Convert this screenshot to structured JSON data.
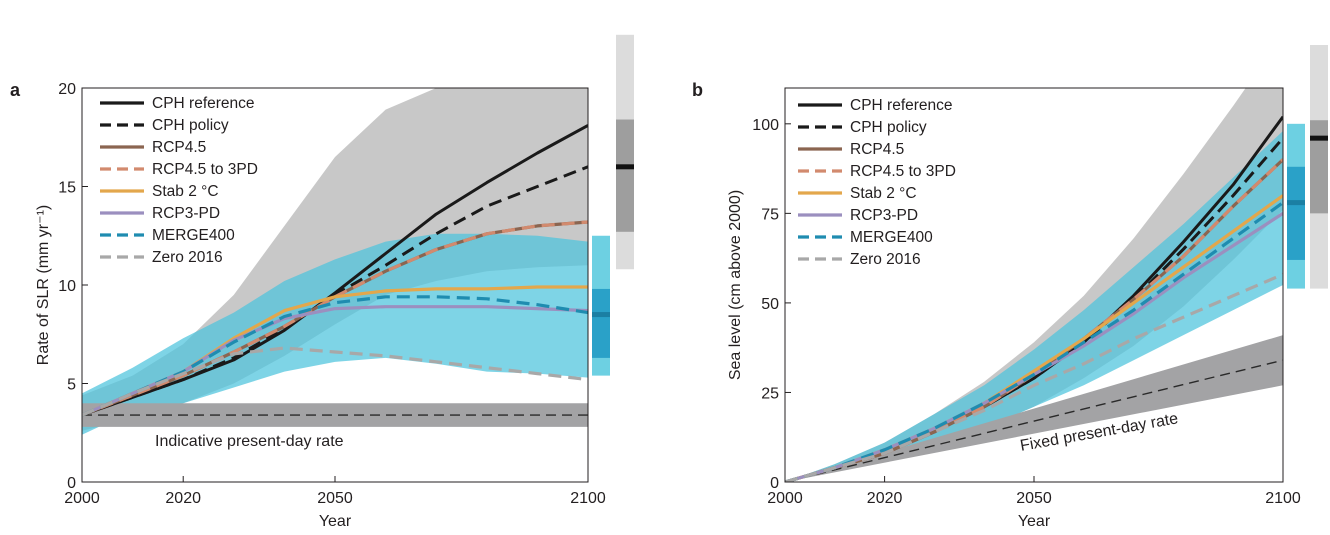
{
  "chart_data": [
    {
      "panel_label": "a",
      "type": "line",
      "xlabel": "Year",
      "ylabel": "Rate of SLR (mm yr⁻¹)",
      "xlim": [
        2000,
        2100
      ],
      "ylim": [
        0,
        20
      ],
      "xticks": [
        2000,
        2020,
        2050,
        2100
      ],
      "yticks": [
        0,
        5,
        10,
        15,
        20
      ],
      "annotation": "Indicative present-day rate",
      "series": [
        {
          "name": "CPH reference",
          "color": "#1a1a1a",
          "dash": "solid",
          "x": [
            2000,
            2010,
            2020,
            2030,
            2040,
            2050,
            2060,
            2070,
            2080,
            2090,
            2100
          ],
          "y": [
            3.4,
            4.3,
            5.2,
            6.2,
            7.7,
            9.6,
            11.6,
            13.6,
            15.2,
            16.7,
            18.1
          ]
        },
        {
          "name": "CPH policy",
          "color": "#1a1a1a",
          "dash": "dashed",
          "x": [
            2000,
            2010,
            2020,
            2030,
            2040,
            2050,
            2060,
            2070,
            2080,
            2090,
            2100
          ],
          "y": [
            3.4,
            4.3,
            5.2,
            6.3,
            7.8,
            9.5,
            11.0,
            12.6,
            14.0,
            15.0,
            16.0
          ]
        },
        {
          "name": "RCP4.5",
          "color": "#8b6550",
          "dash": "solid",
          "x": [
            2000,
            2010,
            2020,
            2030,
            2040,
            2050,
            2060,
            2070,
            2080,
            2090,
            2100
          ],
          "y": [
            3.4,
            4.4,
            5.4,
            6.6,
            7.9,
            9.4,
            10.7,
            11.8,
            12.6,
            13.0,
            13.2
          ]
        },
        {
          "name": "RCP4.5 to 3PD",
          "color": "#d28a6e",
          "dash": "dashed",
          "x": [
            2000,
            2010,
            2020,
            2030,
            2040,
            2050,
            2060,
            2070,
            2080,
            2090,
            2100
          ],
          "y": [
            3.4,
            4.4,
            5.4,
            6.6,
            7.9,
            9.4,
            10.7,
            11.8,
            12.6,
            13.0,
            13.2
          ]
        },
        {
          "name": "Stab 2 °C",
          "color": "#e3a74c",
          "dash": "solid",
          "x": [
            2000,
            2010,
            2020,
            2030,
            2040,
            2050,
            2060,
            2070,
            2080,
            2090,
            2100
          ],
          "y": [
            3.4,
            4.5,
            5.6,
            7.3,
            8.7,
            9.4,
            9.7,
            9.8,
            9.8,
            9.9,
            9.9
          ]
        },
        {
          "name": "RCP3-PD",
          "color": "#9b8fbf",
          "dash": "solid",
          "x": [
            2000,
            2010,
            2020,
            2030,
            2040,
            2050,
            2060,
            2070,
            2080,
            2090,
            2100
          ],
          "y": [
            3.4,
            4.5,
            5.6,
            7.2,
            8.3,
            8.8,
            8.9,
            8.9,
            8.9,
            8.8,
            8.7
          ]
        },
        {
          "name": "MERGE400",
          "color": "#1f8cb0",
          "dash": "dashed",
          "x": [
            2000,
            2010,
            2020,
            2030,
            2040,
            2050,
            2060,
            2070,
            2080,
            2090,
            2100
          ],
          "y": [
            3.4,
            4.5,
            5.6,
            7.1,
            8.4,
            9.1,
            9.4,
            9.4,
            9.3,
            9.0,
            8.6
          ]
        },
        {
          "name": "Zero 2016",
          "color": "#a8a8a8",
          "dash": "dashed",
          "x": [
            2000,
            2010,
            2020,
            2030,
            2040,
            2050,
            2060,
            2070,
            2080,
            2090,
            2100
          ],
          "y": [
            3.4,
            4.5,
            5.5,
            6.5,
            6.8,
            6.6,
            6.4,
            6.1,
            5.8,
            5.5,
            5.2
          ]
        }
      ],
      "present_day_rate": {
        "x": [
          2000,
          2100
        ],
        "center": [
          3.4,
          3.4
        ],
        "low": [
          2.8,
          2.8
        ],
        "high": [
          4.0,
          4.0
        ]
      },
      "bands": [
        {
          "color": "#b5b5b5",
          "x": [
            2000,
            2010,
            2020,
            2030,
            2040,
            2050,
            2060,
            2070,
            2080,
            2090,
            2100
          ],
          "low": [
            2.6,
            3.2,
            4.0,
            5.0,
            6.4,
            8.0,
            9.5,
            10.2,
            10.7,
            10.9,
            11.0
          ],
          "high": [
            4.4,
            5.4,
            7.0,
            9.5,
            13.0,
            16.5,
            18.9,
            20.0,
            20.0,
            20.0,
            20.0
          ]
        },
        {
          "color": "#4cc3dd",
          "x": [
            2000,
            2010,
            2020,
            2030,
            2040,
            2050,
            2060,
            2070,
            2080,
            2090,
            2100
          ],
          "low": [
            2.4,
            3.6,
            4.0,
            4.8,
            5.6,
            6.1,
            6.3,
            6.0,
            5.6,
            5.5,
            5.3
          ],
          "high": [
            4.5,
            5.8,
            7.3,
            8.6,
            10.2,
            11.3,
            12.2,
            12.6,
            12.6,
            12.5,
            12.2
          ]
        }
      ],
      "side_bars": [
        {
          "color_light": "#dcdcdc",
          "color_dark": "#9e9e9e",
          "outer": [
            10.8,
            22.7
          ],
          "inner": [
            12.7,
            18.4
          ],
          "median": 16.0
        },
        {
          "color_light": "#6dd0e2",
          "color_dark": "#2aa1c8",
          "outer": [
            5.4,
            12.5
          ],
          "inner": [
            6.3,
            9.8
          ],
          "median": 8.5
        }
      ]
    },
    {
      "panel_label": "b",
      "type": "line",
      "xlabel": "Year",
      "ylabel": "Sea level (cm above 2000)",
      "xlim": [
        2000,
        2100
      ],
      "ylim": [
        0,
        110
      ],
      "xticks": [
        2000,
        2020,
        2050,
        2100
      ],
      "yticks": [
        0,
        25,
        50,
        75,
        100
      ],
      "annotation": "Fixed present-day rate",
      "series": [
        {
          "name": "CPH reference",
          "color": "#1a1a1a",
          "dash": "solid",
          "x": [
            2000,
            2010,
            2020,
            2030,
            2040,
            2050,
            2060,
            2070,
            2080,
            2090,
            2100
          ],
          "y": [
            0,
            4,
            8,
            14,
            21,
            29,
            39,
            52,
            67,
            83,
            102
          ]
        },
        {
          "name": "CPH policy",
          "color": "#1a1a1a",
          "dash": "dashed",
          "x": [
            2000,
            2010,
            2020,
            2030,
            2040,
            2050,
            2060,
            2070,
            2080,
            2090,
            2100
          ],
          "y": [
            0,
            4,
            8,
            14,
            21,
            29,
            39,
            51,
            65,
            80,
            96
          ]
        },
        {
          "name": "RCP4.5",
          "color": "#8b6550",
          "dash": "solid",
          "x": [
            2000,
            2010,
            2020,
            2030,
            2040,
            2050,
            2060,
            2070,
            2080,
            2090,
            2100
          ],
          "y": [
            0,
            4,
            8,
            14,
            21,
            30,
            40,
            51,
            63,
            77,
            90
          ]
        },
        {
          "name": "RCP4.5 to 3PD",
          "color": "#d28a6e",
          "dash": "dashed",
          "x": [
            2000,
            2010,
            2020,
            2030,
            2040,
            2050,
            2060,
            2070,
            2080,
            2090,
            2100
          ],
          "y": [
            0,
            4,
            8,
            14,
            21,
            30,
            40,
            51,
            63,
            77,
            90
          ]
        },
        {
          "name": "Stab 2 °C",
          "color": "#e3a74c",
          "dash": "solid",
          "x": [
            2000,
            2010,
            2020,
            2030,
            2040,
            2050,
            2060,
            2070,
            2080,
            2090,
            2100
          ],
          "y": [
            0,
            4,
            9,
            15,
            22,
            31,
            40,
            50,
            60,
            70,
            80
          ]
        },
        {
          "name": "RCP3-PD",
          "color": "#9b8fbf",
          "dash": "solid",
          "x": [
            2000,
            2010,
            2020,
            2030,
            2040,
            2050,
            2060,
            2070,
            2080,
            2090,
            2100
          ],
          "y": [
            0,
            4,
            9,
            15,
            22,
            30,
            38,
            47,
            57,
            66,
            75
          ]
        },
        {
          "name": "MERGE400",
          "color": "#1f8cb0",
          "dash": "dashed",
          "x": [
            2000,
            2010,
            2020,
            2030,
            2040,
            2050,
            2060,
            2070,
            2080,
            2090,
            2100
          ],
          "y": [
            0,
            4,
            9,
            15,
            22,
            30,
            39,
            48,
            58,
            68,
            78
          ]
        },
        {
          "name": "Zero 2016",
          "color": "#a8a8a8",
          "dash": "dashed",
          "x": [
            2000,
            2010,
            2020,
            2030,
            2040,
            2050,
            2060,
            2070,
            2080,
            2090,
            2100
          ],
          "y": [
            0,
            4,
            8,
            14,
            20,
            27,
            33,
            40,
            46,
            52,
            58
          ]
        }
      ],
      "present_day_rate": {
        "x": [
          2000,
          2100
        ],
        "center": [
          0,
          34
        ],
        "low": [
          0,
          27
        ],
        "high": [
          0,
          41
        ]
      },
      "bands": [
        {
          "color": "#b5b5b5",
          "x": [
            2000,
            2010,
            2020,
            2030,
            2040,
            2050,
            2060,
            2070,
            2080,
            2090,
            2100
          ],
          "low": [
            0,
            3,
            6,
            10,
            15,
            21,
            29,
            38,
            49,
            62,
            76
          ],
          "high": [
            0,
            5,
            11,
            19,
            28,
            39,
            52,
            68,
            86,
            105,
            125
          ]
        },
        {
          "color": "#4cc3dd",
          "x": [
            2000,
            2010,
            2020,
            2030,
            2040,
            2050,
            2060,
            2070,
            2080,
            2090,
            2100
          ],
          "low": [
            0,
            3,
            6,
            10,
            15,
            21,
            27,
            34,
            41,
            48,
            55
          ],
          "high": [
            0,
            5,
            11,
            19,
            27,
            37,
            48,
            60,
            72,
            85,
            98
          ]
        }
      ],
      "side_bars": [
        {
          "color_light": "#dcdcdc",
          "color_dark": "#9e9e9e",
          "outer": [
            54,
            122
          ],
          "inner": [
            75,
            101
          ],
          "median": 96
        },
        {
          "color_light": "#6dd0e2",
          "color_dark": "#2aa1c8",
          "outer": [
            54,
            100
          ],
          "inner": [
            62,
            88
          ],
          "median": 78
        }
      ]
    }
  ]
}
